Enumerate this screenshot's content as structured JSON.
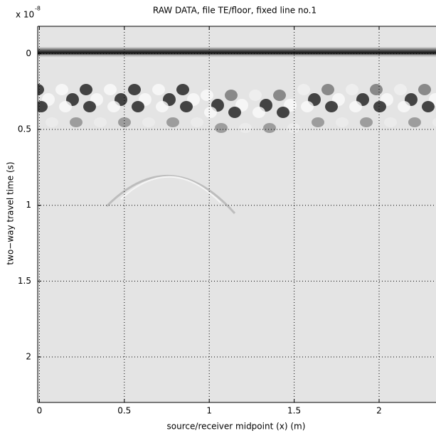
{
  "chart_data": {
    "type": "image",
    "title": "RAW DATA, file TE/floor, fixed line no.1",
    "xlabel": "source/receiver midpoint (x) (m)",
    "ylabel": "two−way travel time (s)",
    "y_scale_label": {
      "base": "x 10",
      "exponent": "-8"
    },
    "xlim": [
      -0.01,
      2.335
    ],
    "ylim": [
      -0.18,
      2.3
    ],
    "xticks": [
      0,
      0.5,
      1,
      1.5,
      2
    ],
    "yticks": [
      0,
      0.5,
      1,
      1.5,
      2
    ],
    "grid": true,
    "colormap": "gray"
  }
}
